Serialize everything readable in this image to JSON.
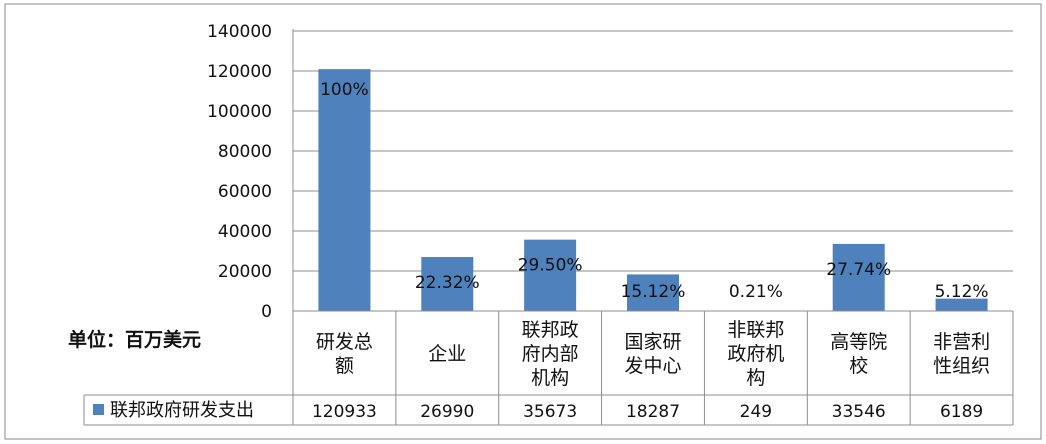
{
  "chart_data": {
    "type": "bar",
    "categories": [
      [
        "研发总",
        "额"
      ],
      [
        "企业"
      ],
      [
        "联邦政",
        "府内部",
        "机构"
      ],
      [
        "国家研",
        "发中心"
      ],
      [
        "非联邦",
        "政府机",
        "构"
      ],
      [
        "高等院",
        "校"
      ],
      [
        "非营利",
        "性组织"
      ]
    ],
    "series": [
      {
        "name": "联邦政府研发支出",
        "values": [
          120933,
          26990,
          35673,
          18287,
          249,
          33546,
          6189
        ],
        "color": "#4f81bd"
      }
    ],
    "data_labels": [
      "100%",
      "22.32%",
      "29.50%",
      "15.12%",
      "0.21%",
      "27.74%",
      "5.12%"
    ],
    "table_values": [
      "120933",
      "26990",
      "35673",
      "18287",
      "249",
      "33546",
      "6189"
    ],
    "unit_label": "单位：百万美元",
    "ylim": [
      0,
      140000
    ],
    "yticks": [
      0,
      20000,
      40000,
      60000,
      80000,
      100000,
      120000,
      140000
    ],
    "grid": true,
    "legend_position": "data-table-left"
  }
}
